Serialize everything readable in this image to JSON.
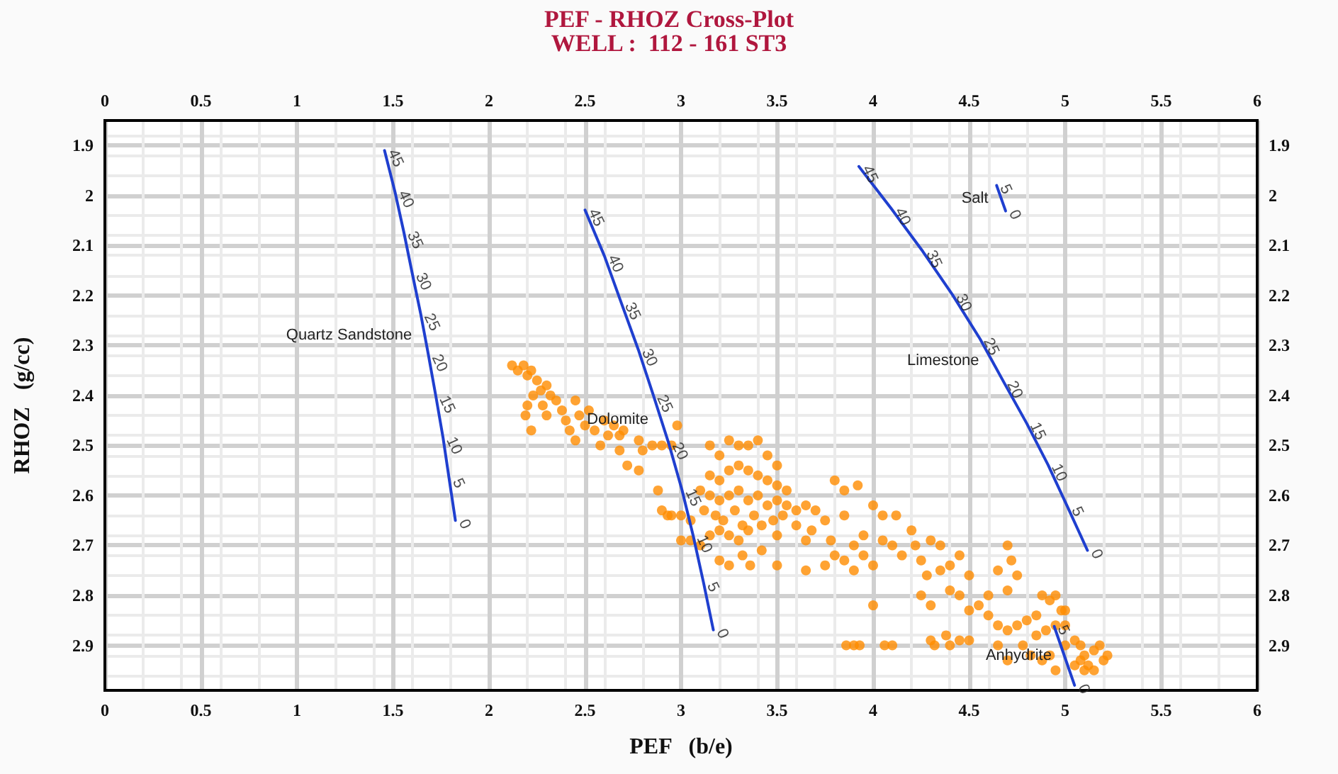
{
  "chart_data": {
    "type": "scatter",
    "title": "PEF - RHOZ Cross-Plot",
    "subtitle": "WELL :  112 - 161 ST3",
    "xlabel": "PEF   (b/e)",
    "ylabel": "RHOZ   (g/cc)",
    "xlim": [
      0,
      6
    ],
    "xticks": [
      0,
      0.5,
      1,
      1.5,
      2,
      2.5,
      3,
      3.5,
      4,
      4.5,
      5,
      5.5,
      6
    ],
    "x2lim": [
      0,
      6
    ],
    "x2ticks": [
      0,
      0.5,
      1,
      1.5,
      2,
      2.5,
      3,
      3.5,
      4,
      4.5,
      5,
      5.5,
      6
    ],
    "ylim": [
      2.99,
      1.85
    ],
    "yticks": [
      1.9,
      2,
      2.1,
      2.2,
      2.3,
      2.4,
      2.5,
      2.6,
      2.7,
      2.8,
      2.9
    ],
    "y2lim": [
      2.99,
      1.85
    ],
    "y2ticks": [
      1.9,
      2,
      2.1,
      2.2,
      2.3,
      2.4,
      2.5,
      2.6,
      2.7,
      2.8,
      2.9
    ],
    "grid": true,
    "legend": false,
    "series": [
      {
        "color": "#ff8c00",
        "marker": "circle",
        "x": [
          2.12,
          2.15,
          2.18,
          2.2,
          2.22,
          2.25,
          2.27,
          2.23,
          2.3,
          2.32,
          2.28,
          2.35,
          2.38,
          2.3,
          2.4,
          2.45,
          2.42,
          2.47,
          2.5,
          2.52,
          2.55,
          2.6,
          2.62,
          2.65,
          2.68,
          2.58,
          2.7,
          2.2,
          2.19,
          2.22,
          2.45,
          2.68,
          2.78,
          2.8,
          2.85,
          2.9,
          2.95,
          2.98,
          2.72,
          2.78,
          2.88,
          2.9,
          2.93,
          2.95,
          3.0,
          3.05,
          3.0,
          3.05,
          3.1,
          3.15,
          3.2,
          3.25,
          3.3,
          3.35,
          3.4,
          3.45,
          3.5,
          3.15,
          3.2,
          3.25,
          3.3,
          3.35,
          3.4,
          3.45,
          3.5,
          3.55,
          3.1,
          3.15,
          3.2,
          3.25,
          3.3,
          3.35,
          3.4,
          3.45,
          3.5,
          3.55,
          3.12,
          3.18,
          3.22,
          3.28,
          3.32,
          3.38,
          3.42,
          3.48,
          3.53,
          3.6,
          3.2,
          3.25,
          3.3,
          3.35,
          3.5,
          3.15,
          3.6,
          3.65,
          3.7,
          3.68,
          3.2,
          3.25,
          3.32,
          3.36,
          3.42,
          3.65,
          3.75,
          3.78,
          3.8,
          3.85,
          3.92,
          3.85,
          3.8,
          3.85,
          3.9,
          3.95,
          4.0,
          4.05,
          4.12,
          3.95,
          4.0,
          4.05,
          4.1,
          4.15,
          4.2,
          4.22,
          4.25,
          4.3,
          4.35,
          4.28,
          4.35,
          4.4,
          4.45,
          4.5,
          4.4,
          4.45,
          4.25,
          4.3,
          4.5,
          4.6,
          4.65,
          4.7,
          4.72,
          4.75,
          4.7,
          4.6,
          4.65,
          4.55,
          4.0,
          3.5,
          3.65,
          3.75,
          3.9,
          3.86,
          3.9,
          3.93,
          4.06,
          4.1,
          4.3,
          4.38,
          4.4,
          4.45,
          4.5,
          4.32,
          4.7,
          4.75,
          4.8,
          4.85,
          4.88,
          4.92,
          4.95,
          4.98,
          5.0,
          4.85,
          4.9,
          4.95,
          5.0,
          4.78,
          4.82,
          4.88,
          4.92,
          5.0,
          5.05,
          5.08,
          5.1,
          5.15,
          5.18,
          5.05,
          5.1,
          5.12,
          5.15,
          5.2,
          5.22,
          5.08,
          4.7,
          4.65,
          4.95
        ],
        "values": [
          2.34,
          2.35,
          2.34,
          2.36,
          2.35,
          2.37,
          2.39,
          2.4,
          2.38,
          2.4,
          2.42,
          2.41,
          2.43,
          2.44,
          2.45,
          2.41,
          2.47,
          2.44,
          2.46,
          2.43,
          2.47,
          2.45,
          2.48,
          2.46,
          2.48,
          2.5,
          2.47,
          2.42,
          2.44,
          2.47,
          2.49,
          2.51,
          2.49,
          2.51,
          2.5,
          2.5,
          2.5,
          2.46,
          2.54,
          2.55,
          2.59,
          2.63,
          2.64,
          2.64,
          2.64,
          2.65,
          2.69,
          2.69,
          2.7,
          2.5,
          2.52,
          2.49,
          2.5,
          2.5,
          2.49,
          2.52,
          2.54,
          2.56,
          2.57,
          2.55,
          2.54,
          2.55,
          2.56,
          2.57,
          2.58,
          2.59,
          2.59,
          2.6,
          2.61,
          2.6,
          2.59,
          2.61,
          2.6,
          2.62,
          2.61,
          2.62,
          2.63,
          2.64,
          2.65,
          2.63,
          2.66,
          2.64,
          2.66,
          2.65,
          2.64,
          2.63,
          2.67,
          2.68,
          2.69,
          2.67,
          2.68,
          2.68,
          2.66,
          2.62,
          2.63,
          2.67,
          2.73,
          2.74,
          2.72,
          2.74,
          2.71,
          2.69,
          2.65,
          2.69,
          2.57,
          2.59,
          2.58,
          2.64,
          2.72,
          2.73,
          2.7,
          2.68,
          2.62,
          2.64,
          2.64,
          2.72,
          2.74,
          2.69,
          2.7,
          2.72,
          2.67,
          2.7,
          2.73,
          2.69,
          2.7,
          2.76,
          2.75,
          2.74,
          2.72,
          2.76,
          2.79,
          2.8,
          2.8,
          2.82,
          2.83,
          2.8,
          2.75,
          2.7,
          2.73,
          2.76,
          2.79,
          2.84,
          2.86,
          2.82,
          2.82,
          2.74,
          2.75,
          2.74,
          2.75,
          2.9,
          2.9,
          2.9,
          2.9,
          2.9,
          2.89,
          2.88,
          2.9,
          2.89,
          2.89,
          2.9,
          2.87,
          2.86,
          2.85,
          2.84,
          2.8,
          2.81,
          2.8,
          2.83,
          2.83,
          2.88,
          2.87,
          2.86,
          2.86,
          2.9,
          2.92,
          2.93,
          2.92,
          2.9,
          2.89,
          2.9,
          2.92,
          2.91,
          2.9,
          2.94,
          2.95,
          2.94,
          2.95,
          2.93,
          2.92,
          2.93,
          2.93,
          2.9,
          2.95
        ]
      },
      {
        "type": "line",
        "name": "Quartz Sandstone",
        "color": "#1f3fcf",
        "marker": "none",
        "x": [
          1.456,
          1.51,
          1.557,
          1.601,
          1.645,
          1.685,
          1.724,
          1.761,
          1.793,
          1.825
        ],
        "values": [
          1.91,
          1.992,
          2.074,
          2.157,
          2.238,
          2.32,
          2.403,
          2.485,
          2.568,
          2.65
        ]
      },
      {
        "type": "line",
        "name": "Dolomite",
        "color": "#1f3fcf",
        "marker": "none",
        "x": [
          2.5,
          2.601,
          2.69,
          2.778,
          2.857,
          2.936,
          3.005,
          3.064,
          3.118,
          3.168
        ],
        "values": [
          2.029,
          2.121,
          2.216,
          2.309,
          2.401,
          2.496,
          2.589,
          2.682,
          2.776,
          2.869
        ]
      },
      {
        "type": "line",
        "name": "Limestone",
        "color": "#1f3fcf",
        "marker": "none",
        "x": [
          3.926,
          4.096,
          4.259,
          4.414,
          4.557,
          4.68,
          4.8,
          4.911,
          5.015,
          5.116
        ],
        "values": [
          1.942,
          2.027,
          2.112,
          2.199,
          2.287,
          2.373,
          2.456,
          2.539,
          2.625,
          2.71
        ]
      },
      {
        "type": "line",
        "name": "Salt",
        "color": "#1f3fcf",
        "marker": "none",
        "x": [
          4.643,
          4.69
        ],
        "values": [
          1.98,
          2.031
        ]
      },
      {
        "type": "line",
        "name": "Anhydrite",
        "color": "#1f3fcf",
        "marker": "none",
        "x": [
          4.943,
          5.049
        ],
        "values": [
          2.862,
          2.98
        ]
      }
    ],
    "annotations": [
      {
        "text": "45",
        "x": 1.456,
        "y": 1.91
      },
      {
        "text": "40",
        "x": 1.51,
        "y": 1.992
      },
      {
        "text": "35",
        "x": 1.557,
        "y": 2.074
      },
      {
        "text": "30",
        "x": 1.601,
        "y": 2.157
      },
      {
        "text": "25",
        "x": 1.645,
        "y": 2.238
      },
      {
        "text": "20",
        "x": 1.685,
        "y": 2.32
      },
      {
        "text": "15",
        "x": 1.724,
        "y": 2.403
      },
      {
        "text": "10",
        "x": 1.761,
        "y": 2.485
      },
      {
        "text": "5",
        "x": 1.793,
        "y": 2.568
      },
      {
        "text": "0",
        "x": 1.825,
        "y": 2.65
      },
      {
        "text": "45",
        "x": 2.5,
        "y": 2.029
      },
      {
        "text": "40",
        "x": 2.601,
        "y": 2.121
      },
      {
        "text": "35",
        "x": 2.69,
        "y": 2.216
      },
      {
        "text": "30",
        "x": 2.778,
        "y": 2.309
      },
      {
        "text": "25",
        "x": 2.857,
        "y": 2.401
      },
      {
        "text": "20",
        "x": 2.936,
        "y": 2.496
      },
      {
        "text": "15",
        "x": 3.005,
        "y": 2.589
      },
      {
        "text": "10",
        "x": 3.064,
        "y": 2.682
      },
      {
        "text": "5",
        "x": 3.118,
        "y": 2.776
      },
      {
        "text": "0",
        "x": 3.168,
        "y": 2.869
      },
      {
        "text": "45",
        "x": 3.926,
        "y": 1.942
      },
      {
        "text": "40",
        "x": 4.096,
        "y": 2.027
      },
      {
        "text": "35",
        "x": 4.259,
        "y": 2.112
      },
      {
        "text": "30",
        "x": 4.414,
        "y": 2.199
      },
      {
        "text": "25",
        "x": 4.557,
        "y": 2.287
      },
      {
        "text": "20",
        "x": 4.68,
        "y": 2.373
      },
      {
        "text": "15",
        "x": 4.8,
        "y": 2.456
      },
      {
        "text": "10",
        "x": 4.911,
        "y": 2.539
      },
      {
        "text": "5",
        "x": 5.015,
        "y": 2.625
      },
      {
        "text": "0",
        "x": 5.116,
        "y": 2.71
      },
      {
        "text": "5",
        "x": 4.643,
        "y": 1.98
      },
      {
        "text": "0",
        "x": 4.69,
        "y": 2.031
      },
      {
        "text": "5",
        "x": 4.943,
        "y": 2.862
      },
      {
        "text": "0",
        "x": 5.049,
        "y": 2.98
      }
    ]
  }
}
